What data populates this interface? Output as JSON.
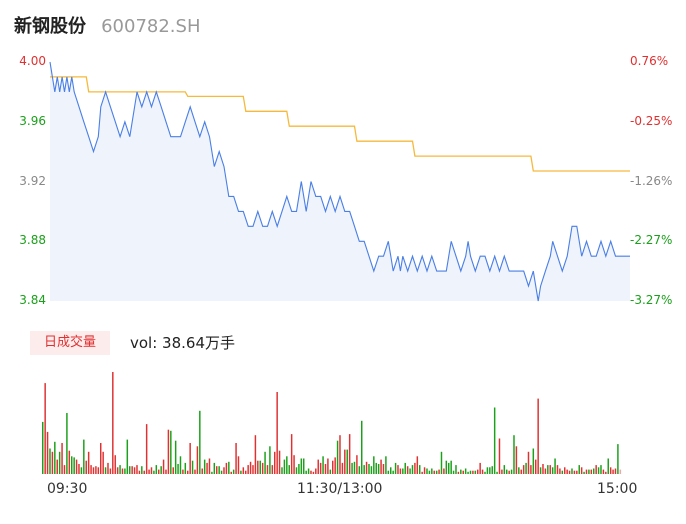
{
  "header": {
    "name": "新钢股份",
    "code": "600782.SH"
  },
  "volume_tag": "日成交量",
  "volume_info": {
    "prefix": "vol: ",
    "value": "38.64",
    "unit": "万手"
  },
  "colors": {
    "price_line": "#4a7fe5",
    "avg_line": "#f6b93b",
    "up": "#e03030",
    "down": "#1aa01a",
    "neutral": "#888888",
    "area_fill": "#eef3fc"
  },
  "chart_data": {
    "type": "line",
    "title": "",
    "xlabel": "",
    "ylabel": "",
    "ylim": [
      3.84,
      4.0
    ],
    "prev_close": 3.97,
    "y_ticks": [
      "4.00",
      "3.96",
      "3.92",
      "3.88",
      "3.84"
    ],
    "y_ticks_right": [
      "0.76%",
      "-0.25%",
      "-1.26%",
      "-2.27%",
      "-3.27%"
    ],
    "x_ticks": [
      "09:30",
      "11:30/13:00",
      "15:00"
    ],
    "total_minutes": 240,
    "series": [
      {
        "key": "price",
        "points": [
          [
            0,
            4.0
          ],
          [
            1,
            3.99
          ],
          [
            2,
            3.98
          ],
          [
            3,
            3.99
          ],
          [
            4,
            3.98
          ],
          [
            5,
            3.99
          ],
          [
            6,
            3.98
          ],
          [
            7,
            3.99
          ],
          [
            8,
            3.98
          ],
          [
            9,
            3.99
          ],
          [
            10,
            3.98
          ],
          [
            12,
            3.97
          ],
          [
            14,
            3.96
          ],
          [
            16,
            3.95
          ],
          [
            18,
            3.94
          ],
          [
            20,
            3.95
          ],
          [
            21,
            3.97
          ],
          [
            23,
            3.98
          ],
          [
            25,
            3.97
          ],
          [
            27,
            3.96
          ],
          [
            29,
            3.95
          ],
          [
            31,
            3.96
          ],
          [
            33,
            3.95
          ],
          [
            35,
            3.97
          ],
          [
            36,
            3.98
          ],
          [
            38,
            3.97
          ],
          [
            40,
            3.98
          ],
          [
            42,
            3.97
          ],
          [
            44,
            3.98
          ],
          [
            46,
            3.97
          ],
          [
            48,
            3.96
          ],
          [
            50,
            3.95
          ],
          [
            54,
            3.95
          ],
          [
            56,
            3.96
          ],
          [
            58,
            3.97
          ],
          [
            60,
            3.96
          ],
          [
            62,
            3.95
          ],
          [
            64,
            3.96
          ],
          [
            66,
            3.95
          ],
          [
            68,
            3.93
          ],
          [
            70,
            3.94
          ],
          [
            72,
            3.93
          ],
          [
            74,
            3.91
          ],
          [
            76,
            3.91
          ],
          [
            78,
            3.9
          ],
          [
            80,
            3.9
          ],
          [
            82,
            3.89
          ],
          [
            84,
            3.89
          ],
          [
            86,
            3.9
          ],
          [
            88,
            3.89
          ],
          [
            90,
            3.89
          ],
          [
            92,
            3.9
          ],
          [
            94,
            3.89
          ],
          [
            96,
            3.9
          ],
          [
            98,
            3.91
          ],
          [
            100,
            3.9
          ],
          [
            102,
            3.9
          ],
          [
            104,
            3.92
          ],
          [
            106,
            3.9
          ],
          [
            108,
            3.92
          ],
          [
            110,
            3.91
          ],
          [
            112,
            3.91
          ],
          [
            114,
            3.9
          ],
          [
            116,
            3.91
          ],
          [
            118,
            3.9
          ],
          [
            120,
            3.91
          ],
          [
            122,
            3.9
          ],
          [
            124,
            3.9
          ],
          [
            126,
            3.89
          ],
          [
            128,
            3.88
          ],
          [
            130,
            3.88
          ],
          [
            132,
            3.87
          ],
          [
            134,
            3.86
          ],
          [
            136,
            3.87
          ],
          [
            138,
            3.87
          ],
          [
            140,
            3.88
          ],
          [
            141,
            3.87
          ],
          [
            142,
            3.86
          ],
          [
            144,
            3.87
          ],
          [
            145,
            3.86
          ],
          [
            146,
            3.87
          ],
          [
            148,
            3.86
          ],
          [
            150,
            3.87
          ],
          [
            152,
            3.86
          ],
          [
            154,
            3.87
          ],
          [
            156,
            3.86
          ],
          [
            158,
            3.87
          ],
          [
            160,
            3.86
          ],
          [
            162,
            3.86
          ],
          [
            164,
            3.86
          ],
          [
            166,
            3.88
          ],
          [
            168,
            3.87
          ],
          [
            170,
            3.86
          ],
          [
            172,
            3.87
          ],
          [
            173,
            3.88
          ],
          [
            174,
            3.87
          ],
          [
            176,
            3.86
          ],
          [
            178,
            3.87
          ],
          [
            180,
            3.87
          ],
          [
            182,
            3.86
          ],
          [
            184,
            3.87
          ],
          [
            186,
            3.86
          ],
          [
            188,
            3.87
          ],
          [
            190,
            3.86
          ],
          [
            192,
            3.86
          ],
          [
            194,
            3.86
          ],
          [
            196,
            3.86
          ],
          [
            198,
            3.85
          ],
          [
            200,
            3.86
          ],
          [
            202,
            3.84
          ],
          [
            203,
            3.85
          ],
          [
            205,
            3.86
          ],
          [
            207,
            3.87
          ],
          [
            208,
            3.88
          ],
          [
            210,
            3.87
          ],
          [
            212,
            3.86
          ],
          [
            214,
            3.87
          ],
          [
            216,
            3.89
          ],
          [
            218,
            3.89
          ],
          [
            220,
            3.87
          ],
          [
            222,
            3.88
          ],
          [
            224,
            3.87
          ],
          [
            226,
            3.87
          ],
          [
            228,
            3.88
          ],
          [
            230,
            3.87
          ],
          [
            232,
            3.88
          ],
          [
            234,
            3.87
          ],
          [
            236,
            3.87
          ],
          [
            238,
            3.87
          ],
          [
            240,
            3.87
          ]
        ]
      },
      {
        "key": "average",
        "points": [
          [
            0,
            3.99
          ],
          [
            15,
            3.99
          ],
          [
            16,
            3.98
          ],
          [
            56,
            3.98
          ],
          [
            57,
            3.977
          ],
          [
            80,
            3.977
          ],
          [
            81,
            3.967
          ],
          [
            98,
            3.967
          ],
          [
            99,
            3.957
          ],
          [
            126,
            3.957
          ],
          [
            127,
            3.947
          ],
          [
            150,
            3.947
          ],
          [
            151,
            3.937
          ],
          [
            199,
            3.937
          ],
          [
            200,
            3.927
          ],
          [
            240,
            3.927
          ]
        ]
      }
    ],
    "volume": [
      47,
      82,
      38,
      23,
      20,
      29,
      13,
      20,
      28,
      8,
      55,
      21,
      16,
      15,
      13,
      9,
      6,
      31,
      12,
      20,
      8,
      6,
      7,
      6,
      28,
      20,
      6,
      10,
      5,
      92,
      17,
      6,
      8,
      5,
      5,
      31,
      7,
      7,
      6,
      8,
      3,
      7,
      3,
      45,
      4,
      6,
      3,
      8,
      4,
      7,
      13,
      4,
      40,
      39,
      6,
      30,
      9,
      16,
      4,
      10,
      3,
      28,
      12,
      4,
      25,
      57,
      5,
      13,
      10,
      14,
      2,
      10,
      7,
      7,
      3,
      6,
      10,
      11,
      2,
      4,
      28,
      16,
      3,
      6,
      3,
      8,
      11,
      8,
      35,
      12,
      12,
      10,
      20,
      8,
      25,
      8,
      20,
      74,
      21,
      6,
      13,
      16,
      8,
      36,
      17,
      6,
      9,
      14,
      14,
      3,
      5,
      3,
      2,
      5,
      13,
      10,
      16,
      9,
      14,
      4,
      12,
      15,
      30,
      35,
      10,
      22,
      22,
      36,
      10,
      11,
      17,
      7,
      48,
      8,
      11,
      9,
      7,
      16,
      10,
      9,
      13,
      9,
      16,
      3,
      6,
      3,
      10,
      8,
      5,
      5,
      10,
      7,
      5,
      8,
      10,
      16,
      8,
      2,
      6,
      5,
      3,
      5,
      3,
      3,
      4,
      20,
      5,
      12,
      10,
      12,
      3,
      8,
      2,
      4,
      3,
      5,
      2,
      3,
      3,
      3,
      4,
      10,
      4,
      2,
      6,
      6,
      7,
      60,
      2,
      32,
      4,
      8,
      4,
      3,
      4,
      35,
      25,
      6,
      4,
      8,
      10,
      20,
      8,
      23,
      13,
      68,
      6,
      9,
      5,
      8,
      8,
      6,
      14,
      8,
      5,
      3,
      6,
      4,
      3,
      5,
      3,
      3,
      8,
      6,
      2,
      4,
      4,
      4,
      5,
      8,
      6,
      8,
      4,
      2,
      14,
      6,
      4,
      5,
      27,
      4
    ],
    "volume_colors": [
      "g",
      "r",
      "r",
      "g",
      "r",
      "g",
      "r",
      "g",
      "r",
      "r",
      "g",
      "r",
      "g",
      "g",
      "r",
      "r",
      "g",
      "g",
      "r",
      "r",
      "r",
      "r",
      "r",
      "r",
      "r",
      "r",
      "g",
      "r",
      "r",
      "r",
      "r",
      "r",
      "g",
      "r",
      "g",
      "g",
      "g",
      "r",
      "r",
      "r",
      "r",
      "g",
      "r",
      "r",
      "r",
      "r",
      "g",
      "g",
      "r",
      "g",
      "r",
      "r",
      "r",
      "g",
      "r",
      "g",
      "g",
      "g",
      "r",
      "g",
      "r",
      "r",
      "g",
      "r",
      "r",
      "g",
      "r",
      "g",
      "r",
      "r",
      "g",
      "g",
      "r",
      "g",
      "g",
      "r",
      "r",
      "g",
      "r",
      "g",
      "r",
      "r",
      "g",
      "r",
      "r",
      "r",
      "r",
      "r",
      "r",
      "r",
      "g",
      "r",
      "g",
      "r",
      "g",
      "r",
      "r",
      "r",
      "r",
      "g",
      "g",
      "g",
      "g",
      "r",
      "r",
      "g",
      "g",
      "g",
      "g",
      "g",
      "g",
      "r",
      "r",
      "r",
      "r",
      "r",
      "g",
      "r",
      "r",
      "g",
      "r",
      "r",
      "g",
      "r",
      "r",
      "r",
      "g",
      "r",
      "g",
      "g",
      "r",
      "g",
      "g",
      "g",
      "r",
      "g",
      "g",
      "g",
      "g",
      "g",
      "r",
      "r",
      "g",
      "g",
      "g",
      "g",
      "g",
      "r",
      "r",
      "g",
      "g",
      "r",
      "g",
      "g",
      "r",
      "r",
      "g",
      "r",
      "r",
      "g",
      "g",
      "g",
      "r",
      "g",
      "r",
      "g",
      "r",
      "g",
      "g",
      "g",
      "g",
      "g",
      "r",
      "g",
      "r",
      "g",
      "g",
      "g",
      "r",
      "g",
      "r",
      "r",
      "r",
      "g",
      "g",
      "g",
      "g",
      "g",
      "g",
      "r",
      "r",
      "g",
      "g",
      "r",
      "g",
      "g",
      "r",
      "g",
      "r",
      "r",
      "g",
      "r",
      "r",
      "g",
      "r",
      "r",
      "g",
      "r",
      "r",
      "g",
      "r",
      "g",
      "g",
      "r",
      "r",
      "g",
      "r",
      "r",
      "r",
      "g",
      "r",
      "r",
      "g",
      "r",
      "g",
      "r",
      "g",
      "r",
      "g",
      "r",
      "g",
      "g",
      "r",
      "r",
      "g",
      "r",
      "r",
      "r",
      "g",
      "p"
    ]
  }
}
